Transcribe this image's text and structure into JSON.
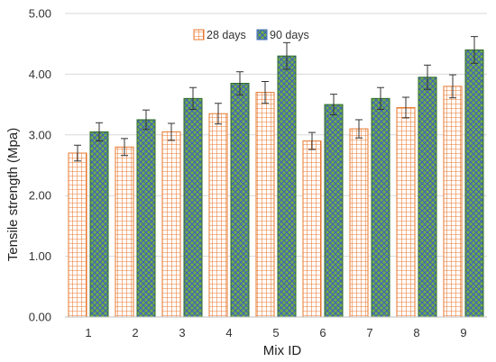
{
  "chart_data": {
    "type": "bar",
    "title": "",
    "xlabel": "Mix ID",
    "ylabel": "Tensile strength (Mpa)",
    "categories": [
      "1",
      "2",
      "3",
      "4",
      "5",
      "6",
      "7",
      "8",
      "9"
    ],
    "series": [
      {
        "name": "28 days",
        "values": [
          2.7,
          2.8,
          3.05,
          3.35,
          3.7,
          2.9,
          3.1,
          3.45,
          3.8
        ],
        "errors": [
          0.13,
          0.14,
          0.14,
          0.17,
          0.18,
          0.14,
          0.15,
          0.17,
          0.19
        ],
        "color": "#E8772E",
        "fill": "#FFFFFF",
        "pattern": "grid"
      },
      {
        "name": "90 days",
        "values": [
          3.05,
          3.25,
          3.6,
          3.85,
          4.3,
          3.5,
          3.6,
          3.95,
          4.4
        ],
        "errors": [
          0.15,
          0.16,
          0.18,
          0.19,
          0.22,
          0.17,
          0.18,
          0.2,
          0.22
        ],
        "color": "#4472C4",
        "fill": "#70AD47",
        "pattern": "diagonal-cross"
      }
    ],
    "ylim": [
      0,
      5
    ],
    "yticks": [
      "0.00",
      "1.00",
      "2.00",
      "3.00",
      "4.00",
      "5.00"
    ],
    "grid": true,
    "legend_position": "top-center"
  }
}
